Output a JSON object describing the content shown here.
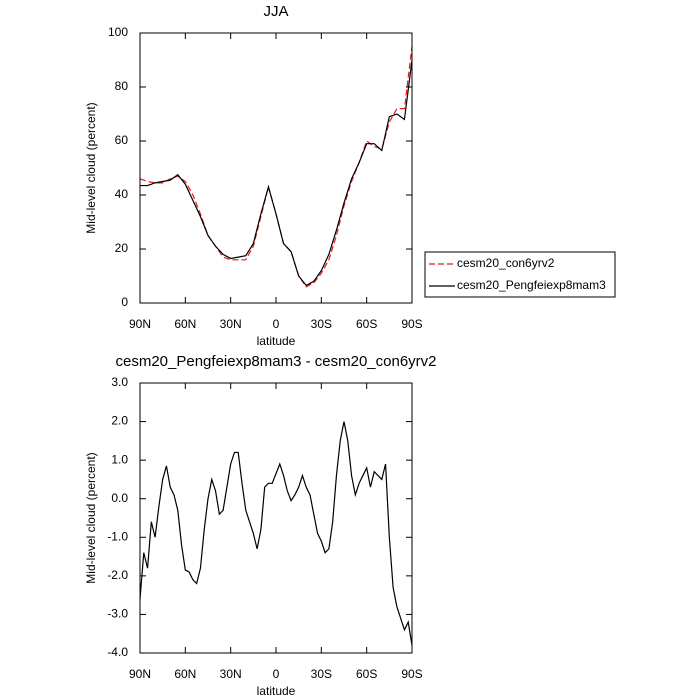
{
  "chart_data": [
    {
      "type": "line",
      "title": "JJA",
      "xlabel": "latitude",
      "ylabel": "Mid-level cloud (percent)",
      "x": [
        90,
        85,
        80,
        75,
        70,
        65,
        60,
        55,
        50,
        45,
        40,
        35,
        30,
        25,
        20,
        15,
        10,
        5,
        0,
        -5,
        -10,
        -15,
        -20,
        -25,
        -30,
        -35,
        -40,
        -45,
        -50,
        -55,
        -60,
        -65,
        -70,
        -75,
        -80,
        -85,
        -90
      ],
      "series": [
        {
          "name": "cesm20_con6yrv2",
          "color": "#e41a1c",
          "linestyle": "dashed",
          "values": [
            46,
            45,
            44.5,
            44.5,
            46,
            47,
            45,
            40,
            33,
            25,
            21,
            17,
            16,
            16,
            16,
            21,
            32,
            43,
            33,
            22,
            19,
            10,
            6,
            7.5,
            11,
            16,
            25,
            36,
            45,
            52,
            60,
            58,
            57,
            67,
            72,
            72,
            95
          ]
        },
        {
          "name": "cesm20_Pengfeiexp8mam3",
          "color": "#000000",
          "linestyle": "solid",
          "values": [
            43.5,
            43.5,
            44.5,
            45,
            45.5,
            47.5,
            44,
            38,
            32,
            25,
            21,
            18,
            16.5,
            17,
            17.5,
            22,
            33,
            43,
            33,
            22,
            19,
            10,
            6.5,
            8,
            12,
            18,
            27,
            37,
            46,
            52,
            59,
            59,
            56.5,
            69,
            70,
            68,
            90
          ]
        }
      ],
      "xlim": [
        90,
        -90
      ],
      "xticks": [
        {
          "value": 90,
          "label": "90N"
        },
        {
          "value": 60,
          "label": "60N"
        },
        {
          "value": 30,
          "label": "30N"
        },
        0,
        {
          "value": -30,
          "label": "30S"
        },
        {
          "value": -60,
          "label": "60S"
        },
        {
          "value": -90,
          "label": "90S"
        }
      ],
      "ylim": [
        0,
        100
      ],
      "yticks": [
        0,
        20,
        40,
        60,
        80,
        100
      ],
      "legend": "right"
    },
    {
      "type": "line",
      "title": "cesm20_Pengfeiexp8mam3 - cesm20_con6yrv2",
      "xlabel": "latitude",
      "ylabel": "Mid-level cloud (percent)",
      "x": [
        90,
        87.5,
        85,
        82.5,
        80,
        77.5,
        75,
        72.5,
        70,
        67.5,
        65,
        62.5,
        60,
        57.5,
        55,
        52.5,
        50,
        47.5,
        45,
        42.5,
        40,
        37.5,
        35,
        32.5,
        30,
        27.5,
        25,
        22.5,
        20,
        17.5,
        15,
        12.5,
        10,
        7.5,
        5,
        2.5,
        0,
        -2.5,
        -5,
        -7.5,
        -10,
        -12.5,
        -15,
        -17.5,
        -20,
        -22.5,
        -25,
        -27.5,
        -30,
        -32.5,
        -35,
        -37.5,
        -40,
        -42.5,
        -45,
        -47.5,
        -50,
        -52.5,
        -55,
        -57.5,
        -60,
        -62.5,
        -65,
        -67.5,
        -70,
        -72.5,
        -75,
        -77.5,
        -80,
        -82.5,
        -85,
        -87.5,
        -90
      ],
      "series": [
        {
          "color": "#000000",
          "linestyle": "solid",
          "values": [
            -2.6,
            -1.4,
            -1.8,
            -0.6,
            -1.0,
            -0.2,
            0.5,
            0.85,
            0.3,
            0.1,
            -0.3,
            -1.2,
            -1.85,
            -1.9,
            -2.1,
            -2.2,
            -1.8,
            -0.8,
            0.0,
            0.5,
            0.2,
            -0.4,
            -0.3,
            0.3,
            0.9,
            1.2,
            1.2,
            0.4,
            -0.3,
            -0.6,
            -0.9,
            -1.3,
            -0.8,
            0.3,
            0.4,
            0.4,
            0.65,
            0.9,
            0.6,
            0.2,
            -0.05,
            0.1,
            0.3,
            0.6,
            0.3,
            0.1,
            -0.4,
            -0.9,
            -1.1,
            -1.4,
            -1.3,
            -0.6,
            0.6,
            1.5,
            2.0,
            1.5,
            0.6,
            0.1,
            0.4,
            0.6,
            0.8,
            0.3,
            0.7,
            0.6,
            0.5,
            0.9,
            -1.0,
            -2.3,
            -2.8,
            -3.1,
            -3.4,
            -3.2,
            -3.8
          ]
        }
      ],
      "xlim": [
        90,
        -90
      ],
      "xticks": [
        {
          "value": 90,
          "label": "90N"
        },
        {
          "value": 60,
          "label": "60N"
        },
        {
          "value": 30,
          "label": "30N"
        },
        0,
        {
          "value": -30,
          "label": "30S"
        },
        {
          "value": -60,
          "label": "60S"
        },
        {
          "value": -90,
          "label": "90S"
        }
      ],
      "ylim": [
        -4,
        3
      ],
      "yticks": [
        {
          "value": -4,
          "label": "-4.0"
        },
        {
          "value": -3,
          "label": "-3.0"
        },
        {
          "value": -2,
          "label": "-2.0"
        },
        {
          "value": -1,
          "label": "-1.0"
        },
        {
          "value": 0,
          "label": "0.0"
        },
        {
          "value": 1,
          "label": "1.0"
        },
        {
          "value": 2,
          "label": "2.0"
        },
        {
          "value": 3,
          "label": "3.0"
        }
      ]
    }
  ]
}
